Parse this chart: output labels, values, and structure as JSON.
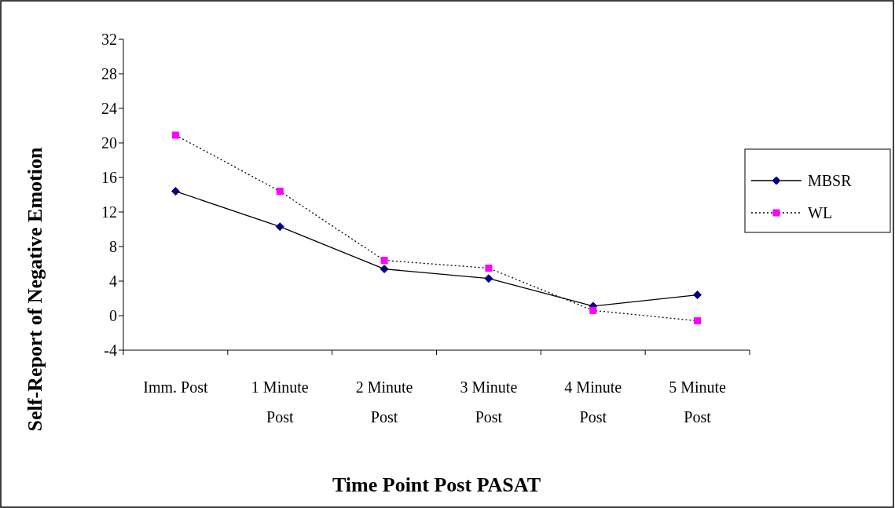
{
  "chart_data": {
    "type": "line",
    "xlabel": "Time Point Post PASAT",
    "ylabel": "Self-Report of Negative Emotion",
    "categories": [
      "Imm. Post",
      "1 Minute Post",
      "2 Minute Post",
      "3 Minute Post",
      "4 Minute Post",
      "5 Minute Post"
    ],
    "series": [
      {
        "name": "MBSR",
        "color": "#000080",
        "values": [
          14.4,
          10.3,
          5.4,
          4.3,
          1.1,
          2.4
        ],
        "marker": "diamond",
        "line_style": "solid"
      },
      {
        "name": "WL",
        "color": "#ff00ff",
        "values": [
          20.9,
          14.4,
          6.4,
          5.5,
          0.6,
          -0.6
        ],
        "marker": "square",
        "line_style": "dotted"
      }
    ],
    "ylim": [
      -4,
      32
    ],
    "yticks": [
      -4,
      0,
      4,
      8,
      12,
      16,
      20,
      24,
      28,
      32
    ],
    "grid": false,
    "legend": "right"
  }
}
